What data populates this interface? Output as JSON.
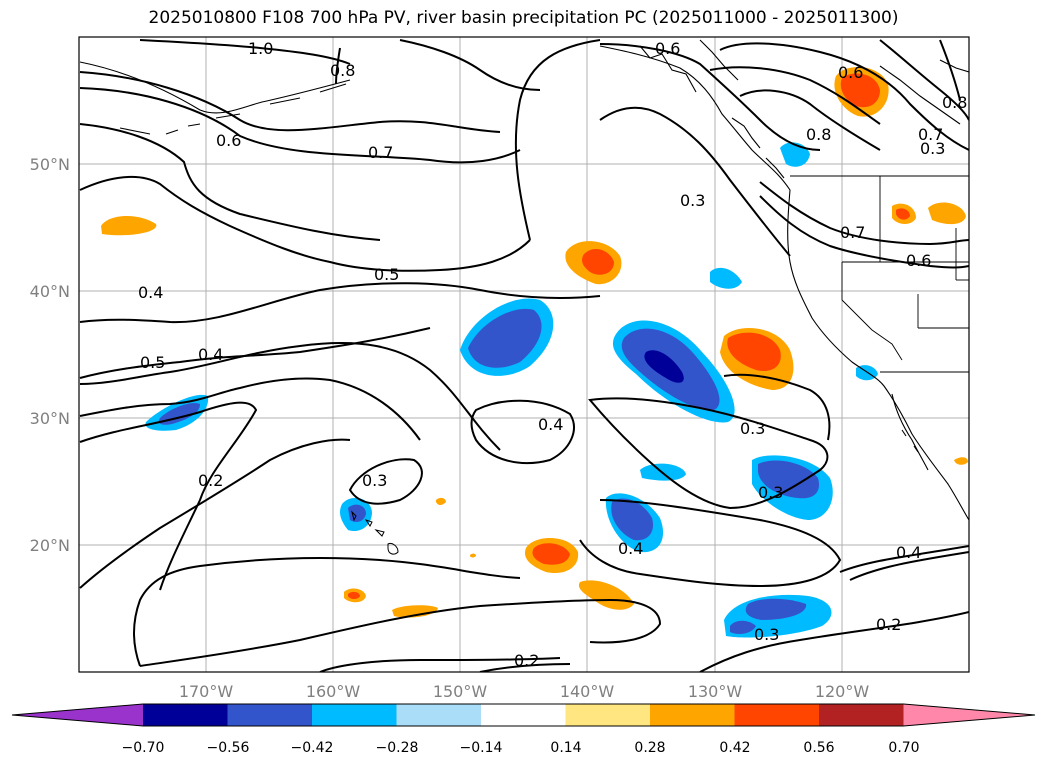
{
  "title": "2025010800 F108 700 hPa PV, river basin precipitation PC (2025011000 - 2025011300)",
  "map": {
    "projection": "cylindrical",
    "lon_range": [
      -180,
      -110
    ],
    "lat_range": [
      10,
      60
    ],
    "lon_ticks": [
      "170°W",
      "160°W",
      "150°W",
      "140°W",
      "130°W",
      "120°W"
    ],
    "lat_ticks": [
      "50°N",
      "40°N",
      "30°N",
      "20°N"
    ],
    "grid": true,
    "contour_field": "700 hPa PV",
    "contour_labels": [
      "1.0",
      "0.6",
      "0.6",
      "0.7",
      "0.8",
      "0.6",
      "0.5",
      "0.4",
      "0.5",
      "0.4",
      "0.3",
      "0.7",
      "0.6",
      "0.8",
      "0.7",
      "0.4",
      "0.3",
      "0.3",
      "0.3",
      "0.2",
      "0.3",
      "0.4",
      "0.4",
      "0.2",
      "0.2",
      "0.3",
      "0.8"
    ],
    "shading_field": "river basin precipitation PC"
  },
  "colorbar": {
    "colors": [
      "#9933cc",
      "#000099",
      "#3355cc",
      "#00bbff",
      "#aaddf8",
      "#ffffff",
      "#ffe680",
      "#ffa500",
      "#ff4500",
      "#b22222",
      "#ff88aa"
    ],
    "tick_labels": [
      "−0.70",
      "−0.56",
      "−0.42",
      "−0.28",
      "−0.14",
      "0.14",
      "0.28",
      "0.42",
      "0.56",
      "0.70"
    ],
    "extend": "both"
  }
}
